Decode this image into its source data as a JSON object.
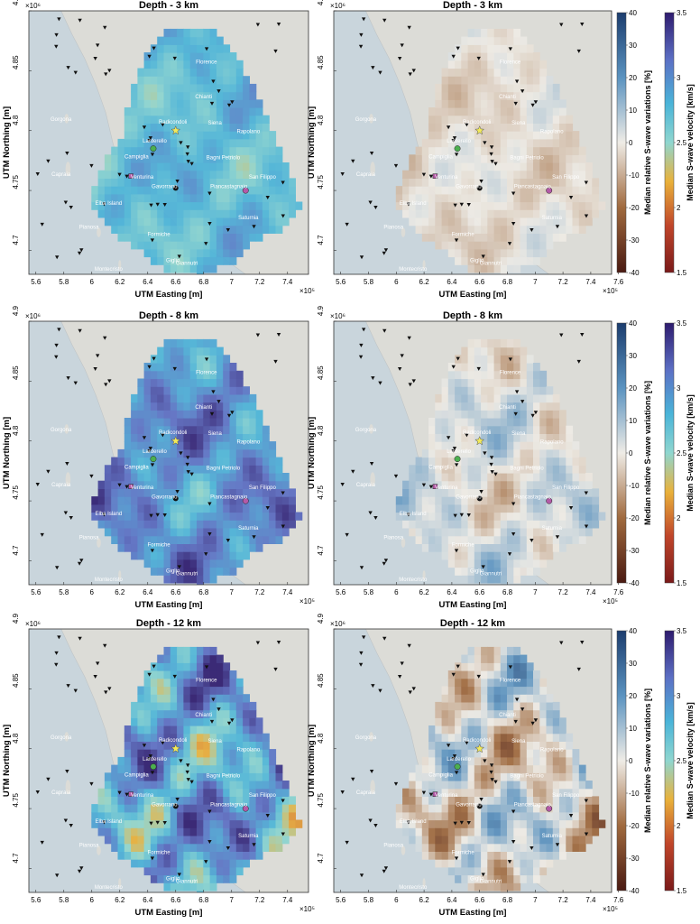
{
  "chart_data": {
    "type": "heatmap",
    "x_axis": {
      "label": "UTM Easting [m]",
      "exponent": "×10⁵",
      "ticks": [
        "5.6",
        "5.8",
        "6",
        "6.2",
        "6.4",
        "6.6",
        "6.8",
        "7",
        "7.2",
        "7.4"
      ],
      "ticks_right_column": [
        "5.6",
        "5.8",
        "6",
        "6.2",
        "6.4",
        "6.6",
        "6.8",
        "7",
        "7.2",
        "7.4",
        "7.6"
      ],
      "range": [
        5.55,
        7.55
      ]
    },
    "y_axis": {
      "label": "UTM Northing [m]",
      "exponent": "×10⁶",
      "ticks": [
        "4.7",
        "4.75",
        "4.8",
        "4.85",
        "4.9"
      ],
      "range": [
        4.68,
        4.9
      ]
    },
    "colorbar_velocity": {
      "label": "Median S-wave velocity [km/s]",
      "ticks": [
        "1.5",
        "2",
        "2.5",
        "3",
        "3.5"
      ],
      "range": [
        1.5,
        3.5
      ]
    },
    "colorbar_variation": {
      "label": "Median relative S-wave variations [%]",
      "ticks": [
        "-40",
        "-30",
        "-20",
        "-10",
        "0",
        "10",
        "20",
        "30",
        "40"
      ],
      "range": [
        -40,
        40
      ]
    },
    "panels": [
      {
        "title": "Depth - 3 km",
        "variable": "velocity",
        "mean": 2.75
      },
      {
        "title": "Depth - 3 km",
        "variable": "variation",
        "mean": -2
      },
      {
        "title": "Depth - 8 km",
        "variable": "velocity",
        "mean": 3.0
      },
      {
        "title": "Depth - 8 km",
        "variable": "variation",
        "mean": 2
      },
      {
        "title": "Depth - 12 km",
        "variable": "velocity",
        "mean": 2.9
      },
      {
        "title": "Depth - 12 km",
        "variable": "variation",
        "mean": 0
      }
    ],
    "places": [
      {
        "name": "Gorgona",
        "x": 5.78,
        "y": 4.808
      },
      {
        "name": "Capraia",
        "x": 5.78,
        "y": 4.762
      },
      {
        "name": "Elba Island",
        "x": 6.12,
        "y": 4.738
      },
      {
        "name": "Pianosa",
        "x": 5.98,
        "y": 4.718
      },
      {
        "name": "Montecristo",
        "x": 6.12,
        "y": 4.683
      },
      {
        "name": "Formiche",
        "x": 6.48,
        "y": 4.712
      },
      {
        "name": "Giglio",
        "x": 6.58,
        "y": 4.69
      },
      {
        "name": "Giannutri",
        "x": 6.68,
        "y": 4.688
      },
      {
        "name": "Florence",
        "x": 6.82,
        "y": 4.856
      },
      {
        "name": "Chianti",
        "x": 6.8,
        "y": 4.827
      },
      {
        "name": "Siena",
        "x": 6.88,
        "y": 4.805
      },
      {
        "name": "Rapolano",
        "x": 7.12,
        "y": 4.798
      },
      {
        "name": "Radicondoli",
        "x": 6.58,
        "y": 4.806
      },
      {
        "name": "Larderello",
        "x": 6.45,
        "y": 4.79
      },
      {
        "name": "Campiglia",
        "x": 6.32,
        "y": 4.777
      },
      {
        "name": "Venturina",
        "x": 6.36,
        "y": 4.76
      },
      {
        "name": "Gavorrano",
        "x": 6.52,
        "y": 4.752
      },
      {
        "name": "Bagni Petriolo",
        "x": 6.94,
        "y": 4.776
      },
      {
        "name": "Piancastagnaio",
        "x": 6.98,
        "y": 4.752
      },
      {
        "name": "San Filippo",
        "x": 7.22,
        "y": 4.76
      },
      {
        "name": "Saturnia",
        "x": 7.12,
        "y": 4.726
      }
    ]
  }
}
